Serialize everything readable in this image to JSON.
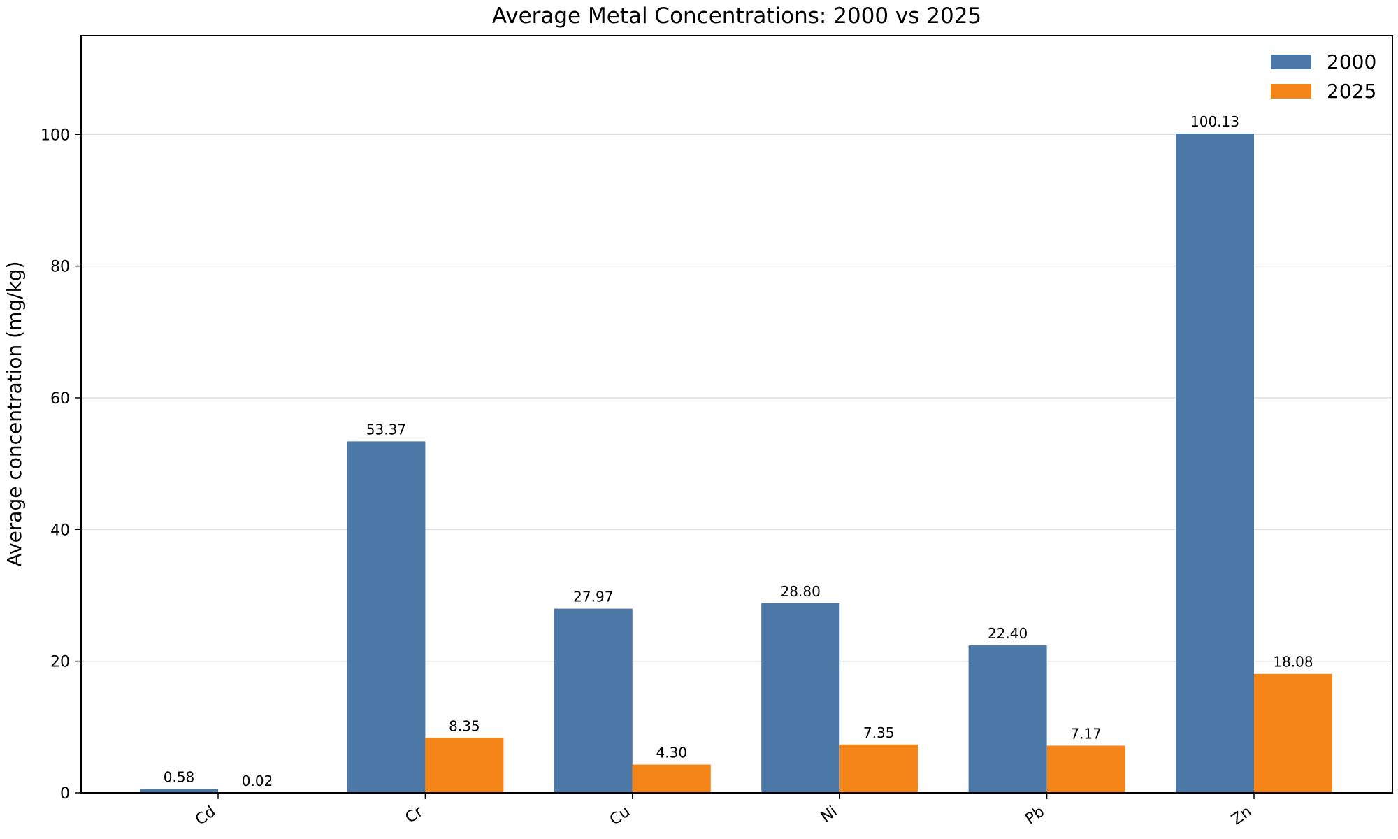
{
  "chart_data": {
    "type": "bar",
    "title": "Average Metal Concentrations: 2000 vs 2025",
    "xlabel": "",
    "ylabel": "Average concentration (mg/kg)",
    "categories": [
      "Cd",
      "Cr",
      "Cu",
      "Ni",
      "Pb",
      "Zn"
    ],
    "series": [
      {
        "name": "2000",
        "color": "#4c78a8",
        "values": [
          0.58,
          53.37,
          27.97,
          28.8,
          22.4,
          100.13
        ],
        "labels": [
          "0.58",
          "53.37",
          "27.97",
          "28.80",
          "22.40",
          "100.13"
        ]
      },
      {
        "name": "2025",
        "color": "#f58518",
        "values": [
          0.02,
          8.35,
          4.3,
          7.35,
          7.17,
          18.08
        ],
        "labels": [
          "0.02",
          "8.35",
          "4.30",
          "7.35",
          "7.17",
          "18.08"
        ]
      }
    ],
    "ylim": [
      0,
      115
    ],
    "yticks": [
      0,
      20,
      40,
      60,
      80,
      100
    ],
    "grid": "y",
    "legend_position": "top-right"
  }
}
